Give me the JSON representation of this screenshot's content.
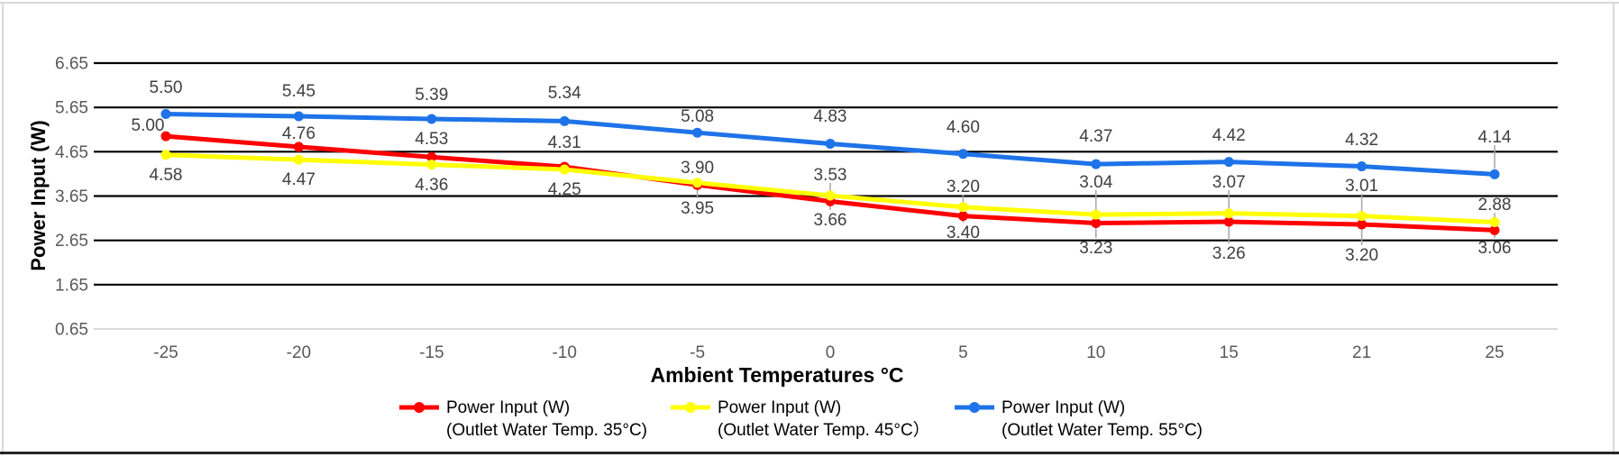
{
  "page": {
    "background": "#ffffff",
    "frame_top_color": "#d9d9d9",
    "frame_side_color": "#d9d9d9",
    "frame_bottom_color": "#262626"
  },
  "chart_data": {
    "type": "line",
    "title": "",
    "xlabel": "Ambient Temperatures °C",
    "ylabel": "Power Input (W)",
    "categories": [
      "-25",
      "-20",
      "-15",
      "-10",
      "-5",
      "0",
      "5",
      "10",
      "15",
      "21",
      "25"
    ],
    "y_ticks": [
      "6.65",
      "5.65",
      "4.65",
      "3.65",
      "2.65",
      "1.65",
      "0.65"
    ],
    "ylim": [
      0.65,
      6.65
    ],
    "grid": "horizontal",
    "gridline_color": "#000000",
    "baseline_color": "#d9d9d9",
    "legend_position": "bottom",
    "data_label_color": "#404040",
    "tick_label_color": "#595959",
    "leader_line_color": "#a6a6a6",
    "series": [
      {
        "id": "outlet-35c",
        "name": "Power Input (W) (Outlet Water Temp. 35°C)",
        "legend_line1": "Power Input (W)",
        "legend_line2": "(Outlet Water Temp. 35°C)",
        "color": "#ff0000",
        "values": [
          5.0,
          4.76,
          4.53,
          4.31,
          3.9,
          3.53,
          3.2,
          3.04,
          3.07,
          3.01,
          2.88
        ],
        "labels": [
          "5.00",
          "4.76",
          "4.53",
          "4.31",
          "3.90",
          "3.53",
          "3.20",
          "3.04",
          "3.07",
          "3.01",
          "2.88"
        ]
      },
      {
        "id": "outlet-45c",
        "name": "Power Input (W) (Outlet Water Temp. 45°C）",
        "legend_line1": "Power Input (W)",
        "legend_line2": "(Outlet Water Temp. 45°C）",
        "color": "#ffff00",
        "values": [
          4.58,
          4.47,
          4.36,
          4.25,
          3.95,
          3.66,
          3.4,
          3.23,
          3.26,
          3.2,
          3.06
        ],
        "labels": [
          "4.58",
          "4.47",
          "4.36",
          "4.25",
          "3.95",
          "3.66",
          "3.40",
          "3.23",
          "3.26",
          "3.20",
          "3.06"
        ]
      },
      {
        "id": "outlet-55c",
        "name": "Power Input (W) (Outlet Water Temp. 55°C)",
        "legend_line1": "Power Input (W)",
        "legend_line2": "(Outlet Water Temp. 55°C)",
        "color": "#1e73e8",
        "values": [
          5.5,
          5.45,
          5.39,
          5.34,
          5.08,
          4.83,
          4.6,
          4.37,
          4.42,
          4.32,
          4.14
        ],
        "labels": [
          "5.50",
          "5.45",
          "5.39",
          "5.34",
          "5.08",
          "4.83",
          "4.60",
          "4.37",
          "4.42",
          "4.32",
          "4.14"
        ]
      }
    ]
  }
}
